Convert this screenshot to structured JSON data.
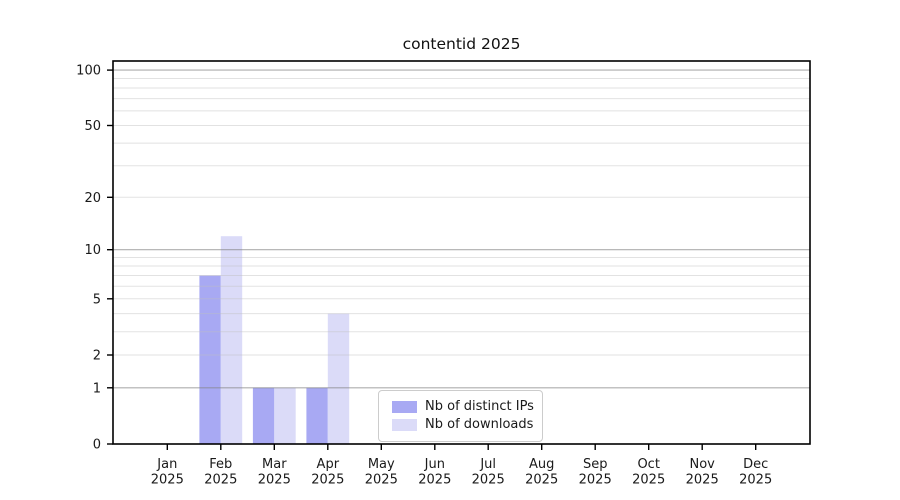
{
  "title": "contentid 2025",
  "chart_data": {
    "type": "bar",
    "title": "contentid 2025",
    "xlabel": "",
    "ylabel": "",
    "year": "2025",
    "categories": [
      "Jan",
      "Feb",
      "Mar",
      "Apr",
      "May",
      "Jun",
      "Jul",
      "Aug",
      "Sep",
      "Oct",
      "Nov",
      "Dec"
    ],
    "series": [
      {
        "name": "Nb of distinct IPs",
        "color": "#a8a9f3",
        "values": [
          0,
          7,
          1,
          1,
          0,
          0,
          0,
          0,
          0,
          0,
          0,
          0
        ]
      },
      {
        "name": "Nb of downloads",
        "color": "#dbdbf8",
        "values": [
          0,
          12,
          1,
          4,
          0,
          0,
          0,
          0,
          0,
          0,
          0,
          0
        ]
      }
    ],
    "yscale": "log1p",
    "ylim": [
      0,
      112
    ],
    "yticks": [
      0,
      1,
      2,
      5,
      10,
      20,
      50,
      100
    ],
    "major_gridlines": [
      1,
      10,
      100
    ],
    "minor_gridlines": [
      2,
      3,
      4,
      5,
      6,
      7,
      8,
      9,
      20,
      30,
      40,
      50,
      60,
      70,
      80,
      90
    ],
    "grid": "horizontal, drawn over bars",
    "legend_position": "lower center inside plot",
    "colors": {
      "major_grid": "#b3b3b3",
      "minor_grid": "#e7e7e7",
      "spine": "#000000",
      "text": "#1a1a1a",
      "background": "#ffffff"
    }
  },
  "legend": {
    "entries": [
      {
        "label": "Nb of distinct IPs"
      },
      {
        "label": "Nb of downloads"
      }
    ]
  }
}
